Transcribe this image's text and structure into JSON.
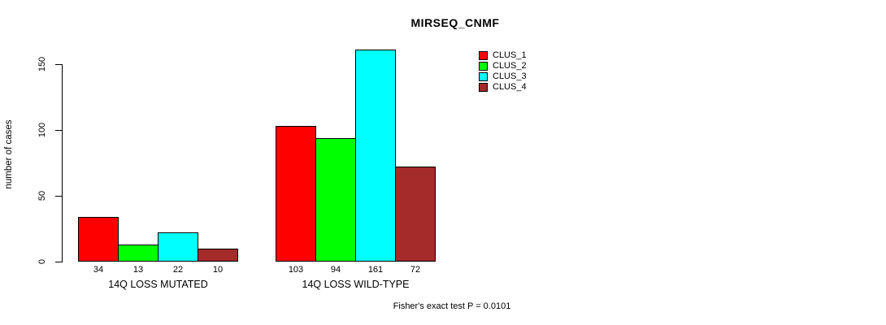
{
  "chart_data": {
    "type": "bar",
    "title": "MIRSEQ_CNMF",
    "xlabel": "",
    "ylabel": "number of cases",
    "ylim": [
      0,
      150
    ],
    "yticks": [
      0,
      50,
      100,
      150
    ],
    "grid": false,
    "legend_position": "top-right",
    "categories": [
      "14Q LOSS MUTATED",
      "14Q LOSS WILD-TYPE"
    ],
    "series": [
      {
        "name": "CLUS_1",
        "color": "#FF0000",
        "values": [
          34,
          103
        ]
      },
      {
        "name": "CLUS_2",
        "color": "#00FF00",
        "values": [
          13,
          94
        ]
      },
      {
        "name": "CLUS_3",
        "color": "#00FFFF",
        "values": [
          22,
          161
        ]
      },
      {
        "name": "CLUS_4",
        "color": "#A52A2A",
        "values": [
          10,
          72
        ]
      }
    ],
    "bar_value_labels": [
      [
        34,
        13,
        22,
        10
      ],
      [
        103,
        94,
        161,
        72
      ]
    ],
    "annotation": "Fisher's exact test P = 0.0101"
  }
}
